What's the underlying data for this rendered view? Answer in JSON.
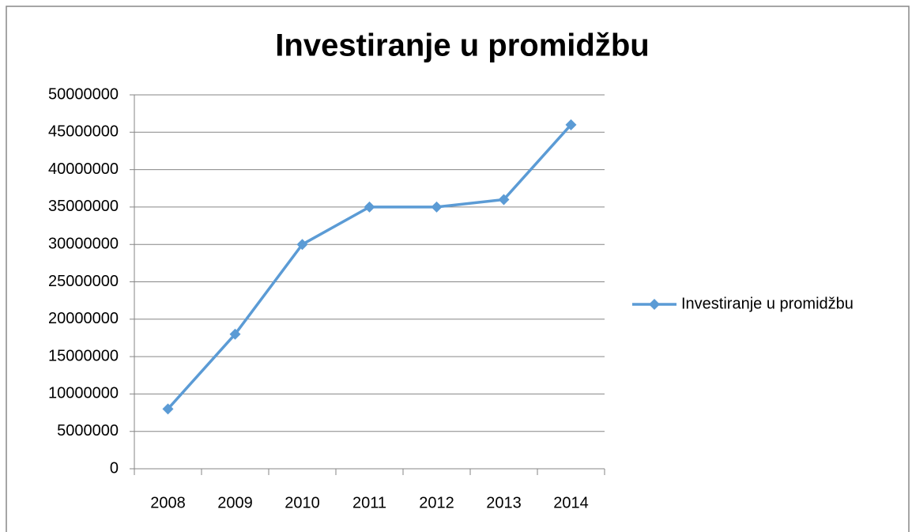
{
  "chart_data": {
    "type": "line",
    "title": "Investiranje u promidžbu",
    "categories": [
      "2008",
      "2009",
      "2010",
      "2011",
      "2012",
      "2013",
      "2014"
    ],
    "series": [
      {
        "name": "Investiranje u promidžbu",
        "color": "#5b9bd5",
        "values": [
          8000000,
          18000000,
          30000000,
          35000000,
          35000000,
          36000000,
          46000000
        ]
      }
    ],
    "ylim": [
      0,
      50000000
    ],
    "yticks": [
      0,
      5000000,
      10000000,
      15000000,
      20000000,
      25000000,
      30000000,
      35000000,
      40000000,
      45000000,
      50000000
    ],
    "grid": true,
    "legend": "right"
  }
}
